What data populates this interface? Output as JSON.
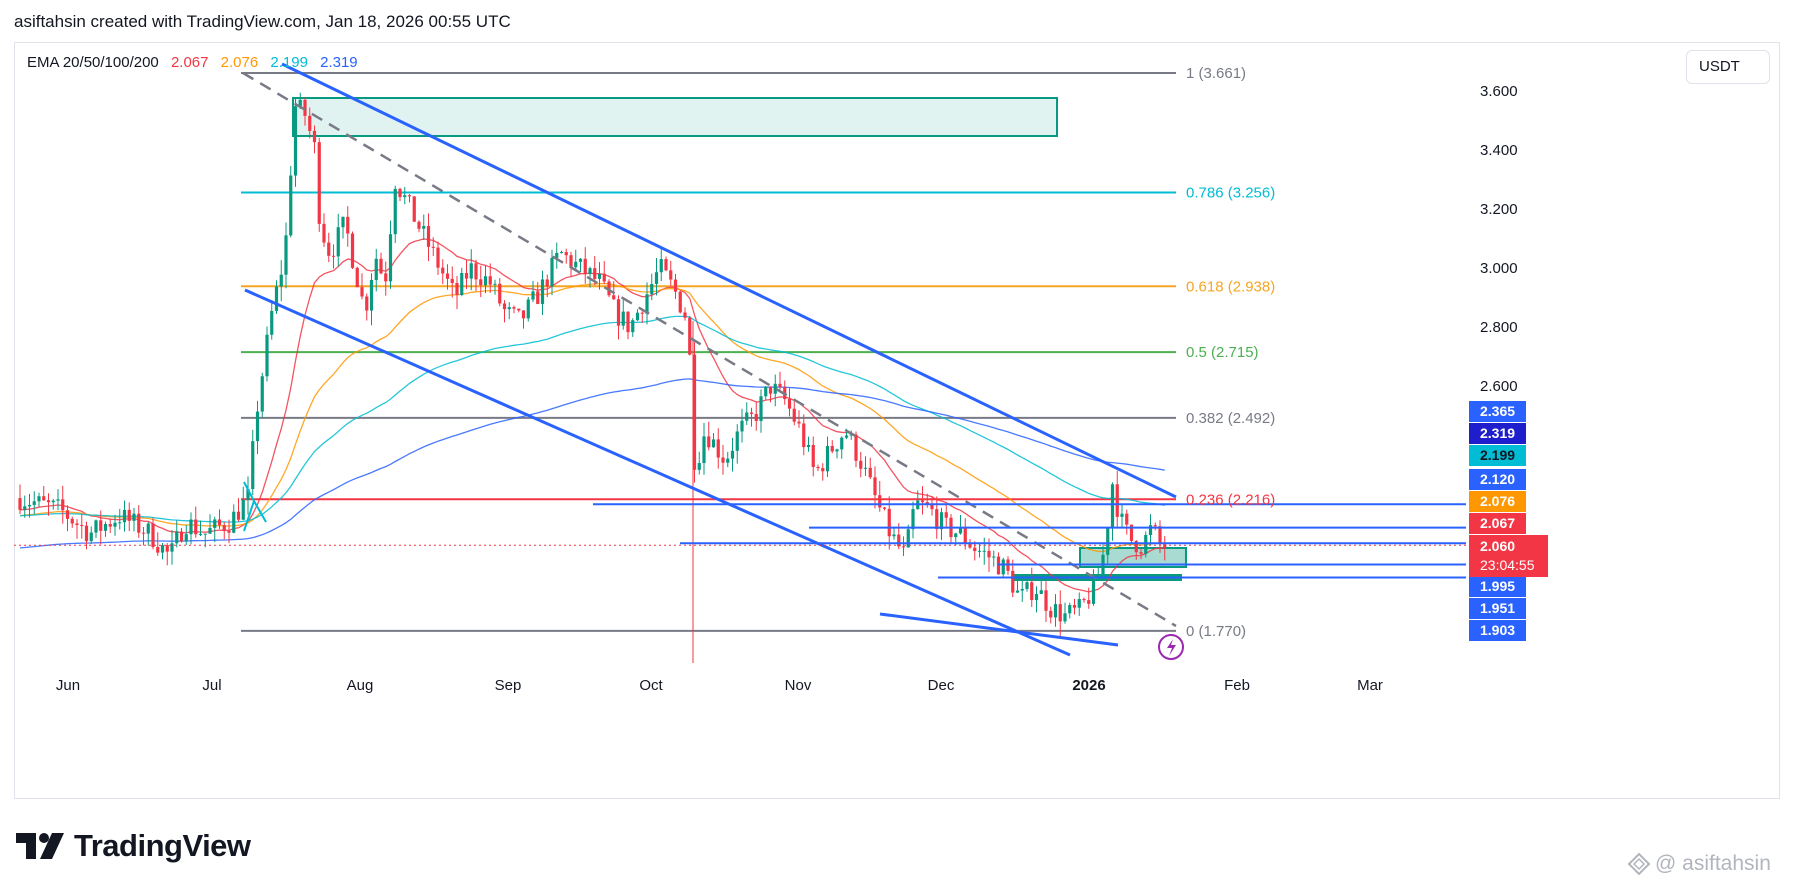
{
  "header": {
    "attribution": "asiftahsin created with TradingView.com, Jan 18, 2026 00:55 UTC"
  },
  "legend": {
    "label": "EMA 20/50/100/200",
    "values": [
      {
        "text": "2.067",
        "color": "#f23645"
      },
      {
        "text": "2.076",
        "color": "#ff9800"
      },
      {
        "text": "2.199",
        "color": "#00bcd4"
      },
      {
        "text": "2.319",
        "color": "#2962ff"
      }
    ]
  },
  "currency": "USDT",
  "footer": {
    "logo_text": "TradingView",
    "watermark": "@ asiftahsin"
  },
  "chart_data": {
    "type": "candlestick",
    "ylim": [
      1.65,
      3.77
    ],
    "y_ticks": [
      {
        "v": 3.6,
        "label": "3.600"
      },
      {
        "v": 3.4,
        "label": "3.400"
      },
      {
        "v": 3.2,
        "label": "3.200"
      },
      {
        "v": 3.0,
        "label": "3.000"
      },
      {
        "v": 2.8,
        "label": "2.800"
      },
      {
        "v": 2.6,
        "label": "2.600"
      }
    ],
    "x_ticks": [
      {
        "label": "Jun",
        "bold": false
      },
      {
        "label": "Jul",
        "bold": false
      },
      {
        "label": "Aug",
        "bold": false
      },
      {
        "label": "Sep",
        "bold": false
      },
      {
        "label": "Oct",
        "bold": false
      },
      {
        "label": "Nov",
        "bold": false
      },
      {
        "label": "Dec",
        "bold": false
      },
      {
        "label": "2026",
        "bold": true
      },
      {
        "label": "Feb",
        "bold": false
      },
      {
        "label": "Mar",
        "bold": false
      }
    ],
    "fib_levels": [
      {
        "ratio": "1",
        "value": 3.661,
        "label": "1 (3.661)",
        "color": "#787b86"
      },
      {
        "ratio": "0.786",
        "value": 3.256,
        "label": "0.786 (3.256)",
        "color": "#00bcd4"
      },
      {
        "ratio": "0.618",
        "value": 2.938,
        "label": "0.618 (2.938)",
        "color": "#f5a623"
      },
      {
        "ratio": "0.5",
        "value": 2.715,
        "label": "0.5 (2.715)",
        "color": "#4caf50"
      },
      {
        "ratio": "0.382",
        "value": 2.492,
        "label": "0.382 (2.492)",
        "color": "#787b86"
      },
      {
        "ratio": "0.236",
        "value": 2.216,
        "label": "0.236 (2.216)",
        "color": "#f23645"
      },
      {
        "ratio": "0",
        "value": 1.77,
        "label": "0 (1.770)",
        "color": "#787b86"
      }
    ],
    "horizontal_levels": [
      2.199,
      2.12,
      2.067,
      1.995,
      1.951,
      1.903
    ],
    "price_badges": [
      {
        "value": 2.365,
        "text": "2.365",
        "bg": "#2962ff",
        "fg": "#ffffff"
      },
      {
        "value": 2.319,
        "text": "2.319",
        "bg": "#1e1ecc",
        "fg": "#ffffff"
      },
      {
        "value": 2.199,
        "text": "2.199",
        "bg": "#00bcd4",
        "fg": "#131722"
      },
      {
        "value": 2.12,
        "text": "2.120",
        "bg": "#2962ff",
        "fg": "#ffffff"
      },
      {
        "value": 2.076,
        "text": "2.076",
        "bg": "#ff9800",
        "fg": "#ffffff"
      },
      {
        "value": 2.067,
        "text": "2.067",
        "bg": "#f23645",
        "fg": "#ffffff"
      },
      {
        "value": 1.995,
        "text": "1.995",
        "bg": "#2962ff",
        "fg": "#ffffff"
      },
      {
        "value": 1.951,
        "text": "1.951",
        "bg": "#2962ff",
        "fg": "#ffffff"
      },
      {
        "value": 1.903,
        "text": "1.903",
        "bg": "#2962ff",
        "fg": "#ffffff"
      }
    ],
    "last_price": {
      "value": 2.06,
      "text": "2.060",
      "countdown": "23:04:55",
      "color": "#f23645"
    },
    "colors": {
      "up": "#089981",
      "down": "#f23645",
      "channel": "#2962ff",
      "midline": "#787b86",
      "zone": "#089981"
    }
  }
}
